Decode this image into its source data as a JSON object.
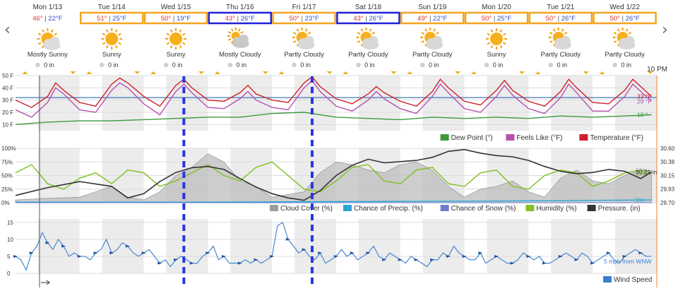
{
  "nav": {
    "prev_glyph": "‹",
    "next_glyph": "›"
  },
  "days": [
    {
      "date": "Mon 1/13",
      "hi": "46°",
      "lo": "22°F",
      "cond": "Mostly Sunny",
      "icon": "mostly-sunny-icon",
      "precip": "0 in",
      "box": ""
    },
    {
      "date": "Tue 1/14",
      "hi": "51°",
      "lo": "25°F",
      "cond": "Sunny",
      "icon": "sunny-icon",
      "precip": "0 in",
      "box": "orange"
    },
    {
      "date": "Wed 1/15",
      "hi": "50°",
      "lo": "19°F",
      "cond": "Sunny",
      "icon": "sunny-icon",
      "precip": "0 in",
      "box": "orange"
    },
    {
      "date": "Thu 1/16",
      "hi": "43°",
      "lo": "26°F",
      "cond": "Mostly Cloudy",
      "icon": "mostly-cloudy-icon",
      "precip": "0 in",
      "box": "blue"
    },
    {
      "date": "Fri 1/17",
      "hi": "50°",
      "lo": "23°F",
      "cond": "Partly Cloudy",
      "icon": "partly-cloudy-icon",
      "precip": "0 in",
      "box": "orange"
    },
    {
      "date": "Sat 1/18",
      "hi": "43°",
      "lo": "26°F",
      "cond": "Partly Cloudy",
      "icon": "partly-cloudy-icon",
      "precip": "0 in",
      "box": "blue"
    },
    {
      "date": "Sun 1/19",
      "hi": "49°",
      "lo": "22°F",
      "cond": "Partly Cloudy",
      "icon": "partly-cloudy-icon",
      "precip": "0 in",
      "box": "orange"
    },
    {
      "date": "Mon 1/20",
      "hi": "50°",
      "lo": "25°F",
      "cond": "Sunny",
      "icon": "sunny-icon",
      "precip": "0 in",
      "box": "orange"
    },
    {
      "date": "Tue 1/21",
      "hi": "50°",
      "lo": "26°F",
      "cond": "Partly Cloudy",
      "icon": "partly-cloudy-icon",
      "precip": "0 in",
      "box": "orange"
    },
    {
      "date": "Wed 1/22",
      "hi": "50°",
      "lo": "26°F",
      "cond": "Partly Cloudy",
      "icon": "partly-cloudy-icon",
      "precip": "0 in",
      "box": "orange"
    }
  ],
  "box_colors": {
    "orange": "#f2a51e",
    "blue": "#2020d8"
  },
  "current_time_label": "10 PM",
  "chart_data": [
    {
      "id": "temperature",
      "type": "line",
      "ylim": [
        5,
        50
      ],
      "y_ticks": [
        "50 F",
        "40 F",
        "30 F",
        "20 F",
        "10 F"
      ],
      "y_tick_values": [
        50,
        40,
        30,
        20,
        10
      ],
      "reference_line": 32,
      "x_unit": "hours from Mon 1/13 00:00",
      "xlim": [
        0,
        240
      ],
      "series": [
        {
          "name": "Temperature (°F)",
          "color": "#d0202a",
          "end_label": "33 °F",
          "x": [
            0,
            6,
            12,
            15,
            18,
            24,
            30,
            36,
            39,
            42,
            48,
            54,
            60,
            63,
            66,
            72,
            78,
            84,
            87,
            90,
            96,
            102,
            108,
            111,
            114,
            120,
            126,
            132,
            135,
            138,
            144,
            150,
            156,
            159,
            162,
            168,
            174,
            180,
            183,
            186,
            192,
            198,
            204,
            207,
            210,
            216,
            222,
            228,
            231,
            234,
            238
          ],
          "y": [
            30,
            24,
            33,
            44,
            38,
            28,
            25,
            43,
            48,
            44,
            33,
            25,
            42,
            47,
            40,
            30,
            29,
            36,
            42,
            35,
            30,
            28,
            44,
            49,
            41,
            31,
            27,
            35,
            41,
            36,
            29,
            25,
            37,
            47,
            40,
            29,
            26,
            38,
            46,
            38,
            29,
            25,
            37,
            47,
            40,
            28,
            27,
            38,
            47,
            41,
            33
          ]
        },
        {
          "name": "Feels Like (°F)",
          "color": "#b650b0",
          "end_label": "29 °F",
          "x": [
            0,
            6,
            12,
            15,
            18,
            24,
            30,
            36,
            39,
            42,
            48,
            54,
            60,
            63,
            66,
            72,
            78,
            84,
            87,
            90,
            96,
            102,
            108,
            111,
            114,
            120,
            126,
            132,
            135,
            138,
            144,
            150,
            156,
            159,
            162,
            168,
            174,
            180,
            183,
            186,
            192,
            198,
            204,
            207,
            210,
            216,
            222,
            228,
            231,
            234,
            238
          ],
          "y": [
            22,
            16,
            28,
            40,
            35,
            22,
            20,
            38,
            44,
            40,
            27,
            18,
            37,
            43,
            36,
            24,
            23,
            31,
            37,
            30,
            24,
            22,
            40,
            46,
            37,
            25,
            21,
            30,
            37,
            31,
            23,
            19,
            33,
            43,
            36,
            23,
            20,
            33,
            42,
            34,
            23,
            19,
            32,
            43,
            36,
            21,
            21,
            33,
            43,
            37,
            29
          ]
        },
        {
          "name": "Dew Point (°)",
          "color": "#3c9a3c",
          "end_label": "18 °",
          "x": [
            0,
            12,
            24,
            36,
            48,
            60,
            72,
            84,
            96,
            108,
            120,
            132,
            144,
            156,
            168,
            180,
            192,
            204,
            216,
            228,
            238
          ],
          "y": [
            10,
            12,
            13,
            13,
            14,
            15,
            16,
            16,
            19,
            20,
            16,
            15,
            14,
            16,
            15,
            16,
            15,
            17,
            16,
            17,
            18
          ]
        }
      ],
      "legend": [
        "Dew Point (°)",
        "Feels Like (°F)",
        "Temperature (°F)"
      ]
    },
    {
      "id": "atmosphere",
      "type": "area",
      "ylim": [
        0,
        100
      ],
      "y_ticks": [
        "100%",
        "75%",
        "50%",
        "25%",
        "0%"
      ],
      "y_tick_values": [
        100,
        75,
        50,
        25,
        0
      ],
      "right_ticks": [
        "30.60",
        "30.38",
        "30.15",
        "29.93",
        "29.70"
      ],
      "right_tick_values": [
        30.6,
        30.38,
        30.15,
        29.93,
        29.7
      ],
      "pressure_ylim": [
        29.7,
        30.6
      ],
      "xlim": [
        0,
        240
      ],
      "series": [
        {
          "name": "Cloud Cover (%)",
          "color": "#9e9e9e",
          "end_label": "59%",
          "x": [
            0,
            12,
            24,
            36,
            42,
            48,
            54,
            60,
            66,
            72,
            78,
            84,
            90,
            96,
            102,
            108,
            114,
            120,
            126,
            132,
            138,
            144,
            150,
            156,
            162,
            168,
            174,
            180,
            186,
            192,
            198,
            204,
            210,
            216,
            222,
            228,
            234,
            238
          ],
          "y": [
            5,
            8,
            10,
            30,
            10,
            5,
            20,
            50,
            65,
            90,
            75,
            40,
            30,
            10,
            15,
            20,
            55,
            75,
            70,
            60,
            55,
            70,
            75,
            60,
            30,
            10,
            25,
            30,
            40,
            20,
            10,
            45,
            60,
            40,
            35,
            50,
            60,
            59
          ]
        },
        {
          "name": "Chance of Precip. (%)",
          "color": "#2aa6d6",
          "end_label": "5%",
          "x": [
            0,
            60,
            120,
            180,
            238
          ],
          "y": [
            1,
            1,
            2,
            3,
            5
          ]
        },
        {
          "name": "Chance of Snow (%)",
          "color": "#6a7fd0",
          "x": [
            0,
            238
          ],
          "y": [
            0,
            0
          ]
        },
        {
          "name": "Humidity (%)",
          "color": "#80c020",
          "end_label": "53%",
          "x": [
            0,
            6,
            12,
            18,
            24,
            30,
            36,
            42,
            48,
            54,
            60,
            66,
            72,
            78,
            84,
            90,
            96,
            102,
            108,
            114,
            120,
            126,
            132,
            138,
            144,
            150,
            156,
            162,
            168,
            174,
            180,
            186,
            192,
            198,
            204,
            210,
            216,
            222,
            228,
            234,
            238
          ],
          "y": [
            55,
            70,
            35,
            25,
            45,
            55,
            35,
            60,
            55,
            30,
            40,
            55,
            70,
            50,
            40,
            65,
            75,
            50,
            25,
            20,
            40,
            65,
            70,
            40,
            35,
            60,
            65,
            35,
            30,
            55,
            60,
            30,
            25,
            50,
            60,
            55,
            30,
            40,
            55,
            60,
            53
          ]
        },
        {
          "name": "Pressure. (in)",
          "color": "#333333",
          "end_label": "30.21 in",
          "axis": "right",
          "x": [
            0,
            12,
            24,
            36,
            42,
            48,
            54,
            60,
            66,
            72,
            78,
            84,
            90,
            96,
            102,
            108,
            114,
            120,
            126,
            132,
            138,
            144,
            150,
            156,
            162,
            168,
            174,
            180,
            186,
            192,
            198,
            204,
            210,
            216,
            222,
            228,
            234,
            238
          ],
          "y": [
            29.82,
            29.95,
            30.05,
            29.97,
            29.78,
            29.85,
            30.05,
            30.2,
            30.28,
            30.3,
            30.25,
            30.1,
            29.96,
            29.85,
            29.78,
            29.74,
            29.9,
            30.15,
            30.32,
            30.42,
            30.36,
            30.38,
            30.4,
            30.45,
            30.55,
            30.58,
            30.52,
            30.48,
            30.46,
            30.4,
            30.3,
            30.22,
            30.18,
            30.2,
            30.25,
            30.22,
            30.1,
            30.21
          ]
        }
      ],
      "legend": [
        "Cloud Cover (%)",
        "Chance of Precip. (%)",
        "Chance of Snow (%)",
        "Humidity (%)",
        "Pressure. (in)"
      ]
    },
    {
      "id": "wind",
      "type": "line",
      "ylim": [
        0,
        16
      ],
      "y_ticks": [
        "15",
        "10",
        "5",
        "0"
      ],
      "y_tick_values": [
        15,
        10,
        5,
        0
      ],
      "xlim": [
        0,
        240
      ],
      "series": [
        {
          "name": "Wind Speed",
          "color": "#3a7fd0",
          "end_label": "5 mph from WNW",
          "x": [
            0,
            2,
            4,
            6,
            8,
            10,
            12,
            14,
            16,
            18,
            20,
            22,
            24,
            26,
            28,
            30,
            32,
            34,
            36,
            38,
            40,
            42,
            44,
            46,
            48,
            50,
            52,
            54,
            56,
            58,
            60,
            62,
            64,
            66,
            68,
            70,
            72,
            74,
            76,
            78,
            80,
            82,
            84,
            86,
            88,
            90,
            92,
            94,
            96,
            98,
            100,
            102,
            104,
            106,
            108,
            110,
            112,
            114,
            116,
            118,
            120,
            122,
            124,
            126,
            128,
            130,
            132,
            134,
            136,
            138,
            140,
            142,
            144,
            146,
            148,
            150,
            152,
            154,
            156,
            158,
            160,
            162,
            164,
            166,
            168,
            170,
            172,
            174,
            176,
            178,
            180,
            182,
            184,
            186,
            188,
            190,
            192,
            194,
            196,
            198,
            200,
            202,
            204,
            206,
            208,
            210,
            212,
            214,
            216,
            218,
            220,
            222,
            224,
            226,
            228,
            230,
            232,
            234,
            236,
            238
          ],
          "y": [
            5,
            4,
            1,
            6,
            8,
            12,
            9,
            7,
            10,
            8,
            5,
            6,
            5,
            5,
            4,
            6,
            7,
            10,
            6,
            7,
            9,
            8,
            6,
            5,
            6,
            7,
            5,
            3,
            4,
            2,
            4,
            5,
            4,
            3,
            3,
            5,
            6,
            8,
            4,
            5,
            3,
            3,
            3,
            4,
            3,
            4,
            3,
            4,
            5,
            14,
            15,
            10,
            8,
            6,
            7,
            5,
            4,
            6,
            3,
            4,
            5,
            7,
            5,
            6,
            4,
            5,
            6,
            8,
            5,
            4,
            6,
            5,
            4,
            3,
            5,
            4,
            3,
            2,
            4,
            4,
            6,
            5,
            8,
            6,
            5,
            4,
            4,
            6,
            3,
            4,
            5,
            4,
            3,
            3,
            4,
            6,
            5,
            4,
            5,
            3,
            3,
            4,
            5,
            6,
            5,
            4,
            6,
            5,
            3,
            4,
            5,
            6,
            4,
            3,
            5,
            6,
            7,
            6,
            5,
            5
          ]
        }
      ],
      "legend": [
        "Wind Speed"
      ]
    }
  ],
  "blue_dashed_markers_x": [
    63,
    111
  ]
}
